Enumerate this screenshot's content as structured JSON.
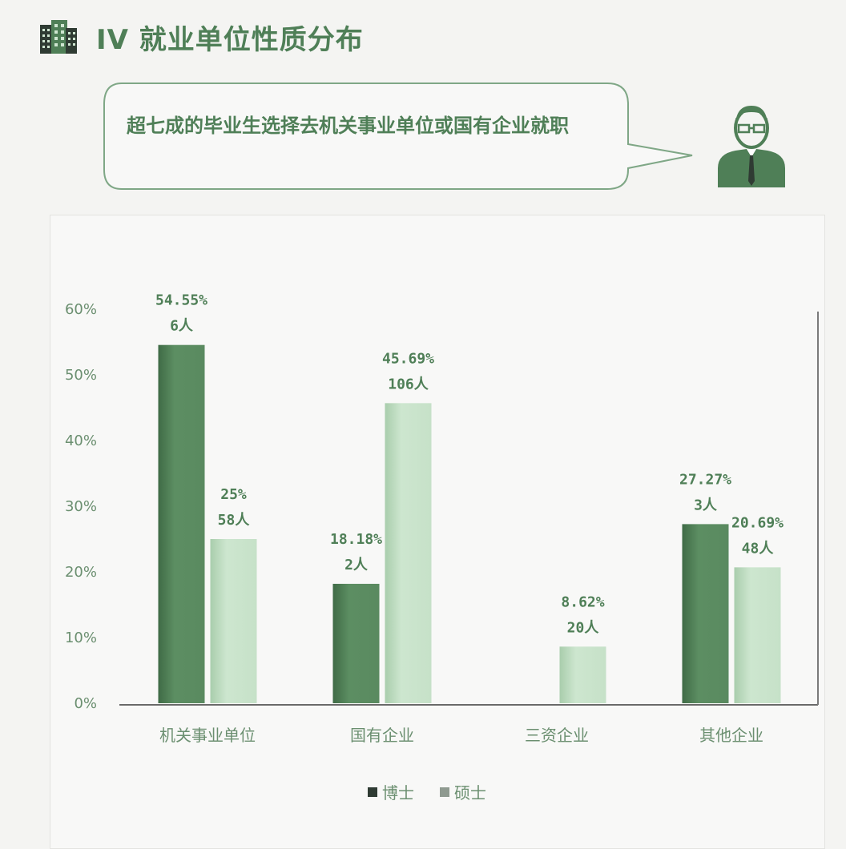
{
  "header": {
    "title": "IV 就业单位性质分布",
    "icon": "building-icon"
  },
  "callout": {
    "text": "超七成的毕业生选择去机关事业单位或国有企业就职",
    "icon": "person-icon"
  },
  "colors": {
    "phd": "#5c8e62",
    "master": "#c9e3cb",
    "accent": "#4f7f57"
  },
  "chart_data": {
    "type": "bar",
    "categories": [
      "机关事业单位",
      "国有企业",
      "三资企业",
      "其他企业"
    ],
    "series": [
      {
        "name": "博士",
        "values": [
          54.55,
          18.18,
          null,
          27.27
        ],
        "labels": [
          "54.55%",
          "18.18%",
          "",
          "27.27%"
        ],
        "counts": [
          "6人",
          "2人",
          "",
          "3人"
        ]
      },
      {
        "name": "硕士",
        "values": [
          25,
          45.69,
          8.62,
          20.69
        ],
        "labels": [
          "25%",
          "45.69%",
          "8.62%",
          "20.69%"
        ],
        "counts": [
          "58人",
          "106人",
          "20人",
          "48人"
        ]
      }
    ],
    "yticks": [
      "0%",
      "10%",
      "20%",
      "30%",
      "40%",
      "50%",
      "60%"
    ],
    "ylim": [
      0,
      60
    ],
    "legend": "bottom",
    "grid": false
  }
}
